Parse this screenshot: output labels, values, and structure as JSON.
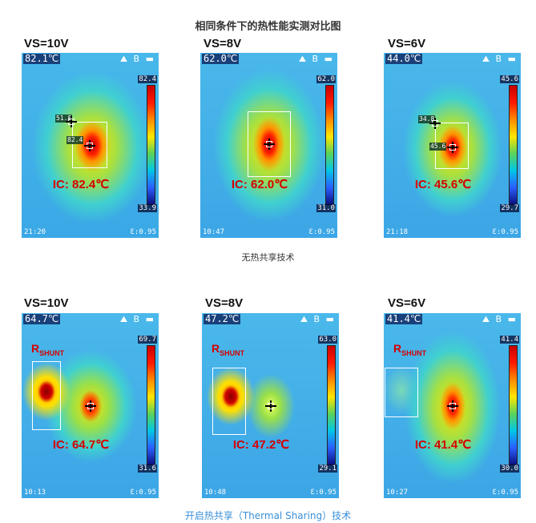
{
  "title": "相同条件下的热性能实测对比图",
  "subtitle": "无热共享技术",
  "caption": "开启热共享（Thermal Sharing）技术",
  "rshunt": {
    "main": "R",
    "sub": "SHUNT"
  },
  "status_icons": "⛰ B ▬",
  "panels": [
    {
      "vs": "VS=10V",
      "temp": "82.1℃",
      "max": "82.4",
      "min": "33.9",
      "time": "21:20",
      "emis": "Ɛ:0.95",
      "ic": "IC: 82.4℃",
      "tag1": "51.8",
      "tag2": "82.4"
    },
    {
      "vs": "VS=8V",
      "temp": "62.0℃",
      "max": "62.0",
      "min": "31.0",
      "time": "10:47",
      "emis": "Ɛ:0.95",
      "ic": "IC: 62.0℃"
    },
    {
      "vs": "VS=6V",
      "temp": "44.0℃",
      "max": "45.6",
      "min": "29.7",
      "time": "21:18",
      "emis": "Ɛ:0.95",
      "ic": "IC: 45.6℃",
      "tag1": "34.8",
      "tag2": "45.6"
    },
    {
      "vs": "VS=10V",
      "temp": "64.7℃",
      "max": "69.7",
      "min": "31.6",
      "time": "10:13",
      "emis": "Ɛ:0.95",
      "ic": "IC: 64.7℃"
    },
    {
      "vs": "VS=8V",
      "temp": "47.2℃",
      "max": "63.0",
      "min": "29.1",
      "time": "10:48",
      "emis": "Ɛ:0.95",
      "ic": "IC: 47.2℃"
    },
    {
      "vs": "VS=6V",
      "temp": "41.4℃",
      "max": "41.4",
      "min": "30.0",
      "time": "10:27",
      "emis": "Ɛ:0.95",
      "ic": "IC: 41.4℃"
    }
  ]
}
